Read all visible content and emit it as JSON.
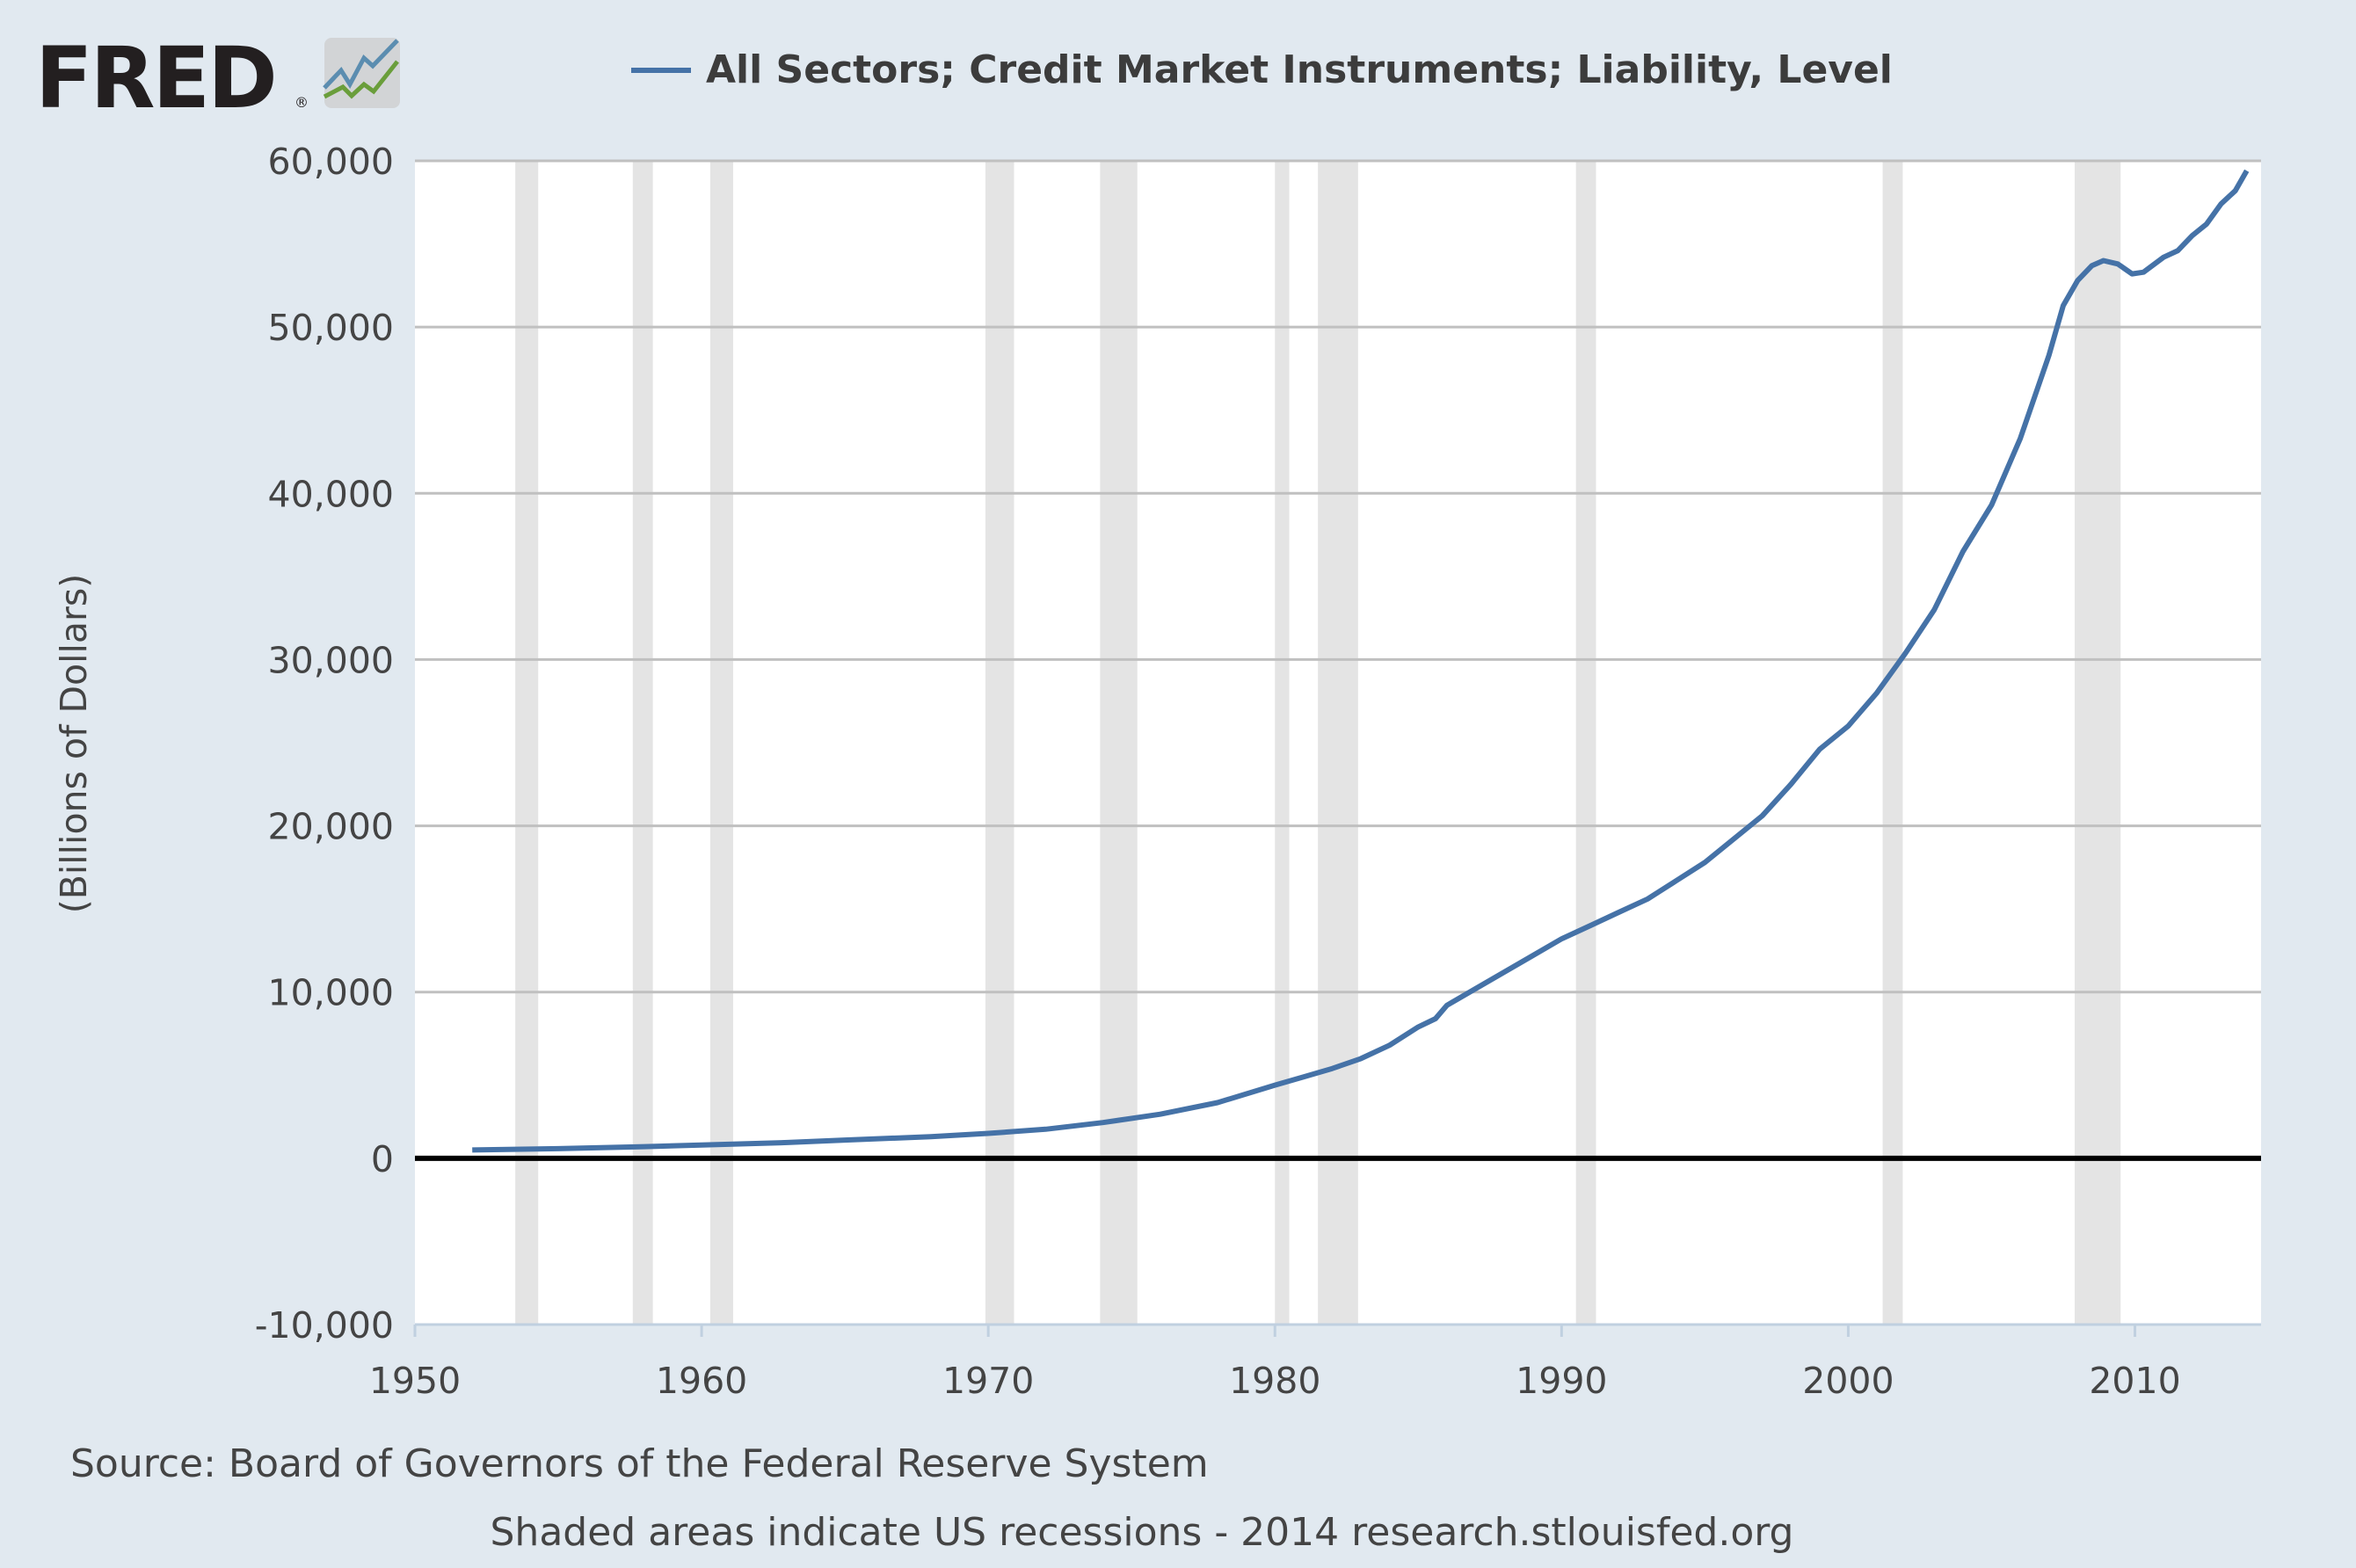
{
  "logo": {
    "text": "FRED",
    "registered": "®"
  },
  "colors": {
    "background": "#e1e9f0",
    "line": "#4572a7",
    "recession": "#e4e4e4",
    "grid": "#c0c0c0",
    "zero": "#000000",
    "text": "#444444"
  },
  "chart_data": {
    "type": "line",
    "title": "All Sectors; Credit Market Instruments; Liability, Level",
    "xlabel": "",
    "ylabel": "(Billions of Dollars)",
    "xlim": [
      1950,
      2014.4
    ],
    "ylim": [
      -10000,
      60000
    ],
    "grid": true,
    "legend": "top-center",
    "x_ticks": [
      1950,
      1960,
      1970,
      1980,
      1990,
      2000,
      2010
    ],
    "x_tick_labels": [
      "1950",
      "1960",
      "1970",
      "1980",
      "1990",
      "2000",
      "2010"
    ],
    "y_ticks": [
      -10000,
      0,
      10000,
      20000,
      30000,
      40000,
      50000,
      60000
    ],
    "y_tick_labels": [
      "-10,000",
      "0",
      "10,000",
      "20,000",
      "30,000",
      "40,000",
      "50,000",
      "60,000"
    ],
    "recessions": [
      [
        1953.5,
        1954.3
      ],
      [
        1957.6,
        1958.3
      ],
      [
        1960.3,
        1961.1
      ],
      [
        1969.9,
        1970.9
      ],
      [
        1973.9,
        1975.2
      ],
      [
        1980.0,
        1980.5
      ],
      [
        1981.5,
        1982.9
      ],
      [
        1990.5,
        1991.2
      ],
      [
        2001.2,
        2001.9
      ],
      [
        2007.9,
        2009.5
      ]
    ],
    "series": [
      {
        "name": "All Sectors; Credit Market Instruments; Liability, Level",
        "x": [
          1952,
          1955,
          1958,
          1960,
          1963,
          1965,
          1968,
          1970,
          1972,
          1974,
          1976,
          1978,
          1980,
          1981,
          1982,
          1983,
          1984,
          1985,
          1985.6,
          1986,
          1987,
          1988,
          1989,
          1990,
          1991,
          1992,
          1993,
          1994,
          1995,
          1996,
          1997,
          1998,
          1999,
          2000,
          2001,
          2002,
          2003,
          2004,
          2005,
          2006,
          2007,
          2007.5,
          2008,
          2008.5,
          2008.9,
          2009.4,
          2009.9,
          2010.3,
          2011,
          2011.5,
          2012,
          2012.5,
          2013,
          2013.5,
          2013.9
        ],
        "values": [
          500,
          580,
          700,
          800,
          950,
          1100,
          1300,
          1500,
          1750,
          2150,
          2650,
          3350,
          4400,
          4900,
          5400,
          6000,
          6800,
          7900,
          8400,
          9200,
          10200,
          11200,
          12200,
          13200,
          14000,
          14800,
          15600,
          16700,
          17800,
          19200,
          20600,
          22500,
          24600,
          26000,
          28000,
          30400,
          33000,
          36500,
          39300,
          43300,
          48300,
          51300,
          52800,
          53700,
          54000,
          53800,
          53200,
          53300,
          54200,
          54600,
          55500,
          56200,
          57400,
          58200,
          59400
        ]
      }
    ]
  },
  "footer": {
    "source": "Source: Board of Governors of the Federal Reserve System",
    "note": "Shaded areas indicate US recessions - 2014 research.stlouisfed.org"
  }
}
